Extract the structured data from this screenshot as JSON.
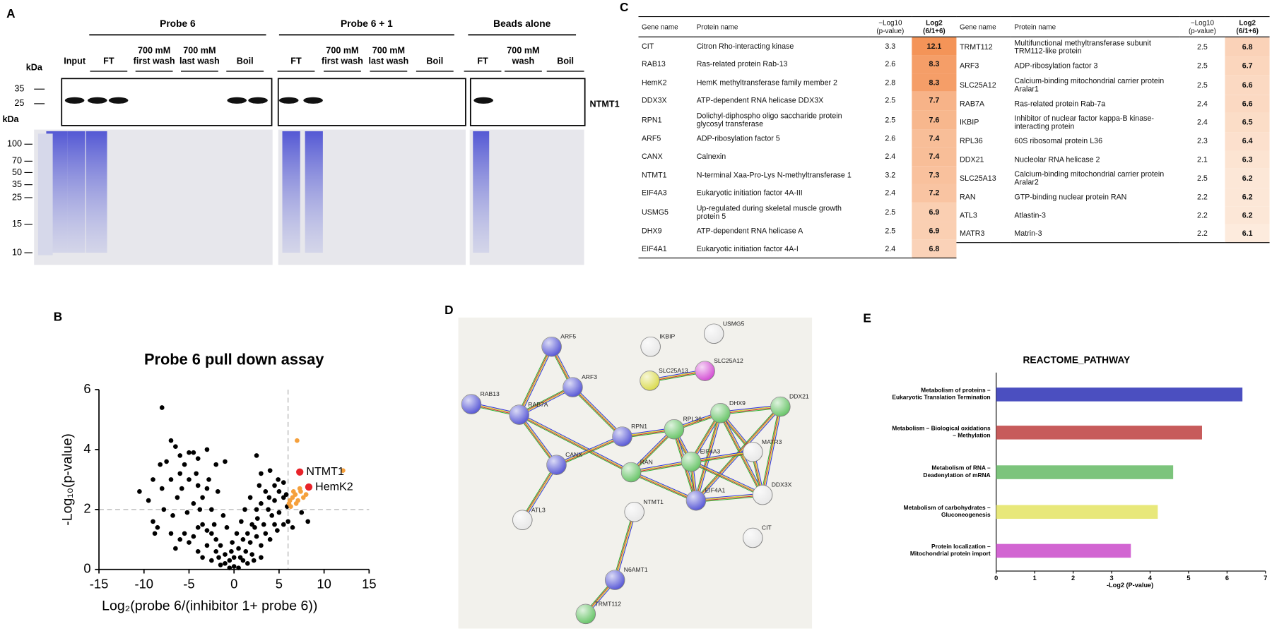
{
  "panel_labels": [
    "A",
    "B",
    "C",
    "D",
    "E"
  ],
  "gel": {
    "groups": [
      "Probe 6",
      "Probe 6 + 1",
      "Beads alone"
    ],
    "lanes": [
      [
        "Input"
      ],
      [
        "FT"
      ],
      [
        "700 mM",
        "first wash"
      ],
      [
        "700 mM",
        "last wash"
      ],
      [
        "Boil"
      ],
      [
        "FT"
      ],
      [
        "700 mM",
        "first wash"
      ],
      [
        "700 mM",
        "last wash"
      ],
      [
        "Boil"
      ],
      [
        "FT"
      ],
      [
        "700 mM",
        "wash"
      ],
      [
        "Boil"
      ]
    ],
    "kda_label": "kDa",
    "blot_markers": [
      35,
      25
    ],
    "gel_markers": [
      100,
      70,
      50,
      35,
      25,
      15,
      10
    ],
    "band_label": "NTMT1"
  },
  "table": {
    "header": [
      "Gene name",
      "Protein name",
      "−Log10\n(p-value)",
      "Log2\n(6/1+6)"
    ],
    "rows_left": [
      [
        "CIT",
        "Citron Rho-interacting kinase",
        3.3,
        12.1
      ],
      [
        "RAB13",
        "Ras-related protein Rab-13",
        2.6,
        8.3
      ],
      [
        "HemK2",
        "HemK methyltransferase family member 2",
        2.8,
        8.3
      ],
      [
        "DDX3X",
        "ATP-dependent RNA helicase DDX3X",
        2.5,
        7.7
      ],
      [
        "RPN1",
        "Dolichyl-diphospho oligo saccharide protein glycosyl transferase",
        2.5,
        7.6
      ],
      [
        "ARF5",
        "ADP-ribosylation factor 5",
        2.6,
        7.4
      ],
      [
        "CANX",
        "Calnexin",
        2.4,
        7.4
      ],
      [
        "NTMT1",
        "N-terminal Xaa-Pro-Lys N-methyltransferase 1",
        3.2,
        7.3
      ],
      [
        "EIF4A3",
        "Eukaryotic initiation factor 4A-III",
        2.4,
        7.2
      ],
      [
        "USMG5",
        "Up-regulated during skeletal muscle growth protein 5",
        2.5,
        6.9
      ],
      [
        "DHX9",
        "ATP-dependent RNA helicase A",
        2.5,
        6.9
      ],
      [
        "EIF4A1",
        "Eukaryotic initiation factor 4A-I",
        2.4,
        6.8
      ]
    ],
    "rows_right": [
      [
        "TRMT112",
        "Multifunctional methyltransferase subunit TRM112-like protein",
        2.5,
        6.8
      ],
      [
        "ARF3",
        "ADP-ribosylation factor 3",
        2.5,
        6.7
      ],
      [
        "SLC25A12",
        "Calcium-binding mitochondrial carrier protein Aralar1",
        2.5,
        6.6
      ],
      [
        "RAB7A",
        "Ras-related protein Rab-7a",
        2.4,
        6.6
      ],
      [
        "IKBIP",
        "Inhibitor of nuclear factor kappa-B kinase-interacting protein",
        2.4,
        6.5
      ],
      [
        "RPL36",
        "60S ribosomal protein L36",
        2.3,
        6.4
      ],
      [
        "DDX21",
        "Nucleolar RNA helicase 2",
        2.1,
        6.3
      ],
      [
        "SLC25A13",
        "Calcium-binding mitochondrial carrier protein Aralar2",
        2.5,
        6.2
      ],
      [
        "RAN",
        "GTP-binding nuclear protein RAN",
        2.2,
        6.2
      ],
      [
        "ATL3",
        "Atlastin-3",
        2.2,
        6.2
      ],
      [
        "MATR3",
        "Matrin-3",
        2.2,
        6.1
      ]
    ]
  },
  "network": {
    "nodes": [
      "ARF5",
      "ARF3",
      "RAB13",
      "RAB7A",
      "IKBIP",
      "USMG5",
      "SLC25A13",
      "SLC25A12",
      "DDX21",
      "DHX9",
      "RPL36",
      "RPN1",
      "CANX",
      "RAN",
      "EIF4A3",
      "MATR3",
      "DDX3X",
      "EIF4A1",
      "NTMT1",
      "ATL3",
      "CIT",
      "N6AMT1",
      "TRMT112"
    ]
  },
  "chart_data": [
    {
      "type": "scatter",
      "title": "Probe 6 pull down assay",
      "x_label": "Log₂(probe 6/(inhibitor 1+ probe 6))",
      "y_label": "-Log₁₀(p-value)",
      "xlim": [
        -15,
        15
      ],
      "ylim": [
        0,
        6
      ],
      "xticks": [
        -15,
        -10,
        -5,
        0,
        5,
        10,
        15
      ],
      "yticks": [
        0,
        2,
        4,
        6
      ],
      "thresholds": {
        "x": 6,
        "y": 2
      },
      "series": [
        {
          "color": "#000000",
          "x": [
            -8,
            -7,
            -6.5,
            -5,
            -4.5,
            -3,
            -1,
            3,
            -6,
            -4,
            -7.5,
            -8.2,
            -5.5,
            -2,
            -10.5,
            -9,
            -8,
            -7,
            -6,
            -5,
            -4,
            -3,
            -6.3,
            -4.5,
            -3.5,
            -7.8,
            -9,
            -8.5,
            -6.8,
            -5.2,
            -2.5,
            2.5,
            4,
            4.5,
            5,
            5.5,
            3.5,
            4.5,
            3,
            2.5,
            5.5,
            5.8,
            3.8,
            4.2,
            5,
            5.5,
            6,
            4.8,
            3.3,
            2.6,
            2,
            1.5,
            1,
            0.5,
            0,
            -0.5,
            -1,
            -1.5,
            -2,
            -2.5,
            -3,
            -3.5,
            -4,
            -4.5,
            -5,
            -5.5,
            -6,
            -3,
            -2,
            -1,
            0,
            1,
            2,
            3,
            4,
            2.5,
            1.8,
            3.5,
            4.5,
            -4,
            -3.5,
            -2.5,
            -1.5,
            -0.5,
            0.5,
            1.5,
            2.2,
            3,
            -6.5,
            -7,
            -1.2,
            -0.8,
            0.8,
            1.2,
            0.3,
            -0.2,
            2.8,
            1.8,
            -2.8,
            -1.8,
            -4.2,
            -5.8,
            5.9,
            7.5,
            8.2,
            6.5,
            -0.3,
            0.7,
            -1.7,
            1.3,
            -2.2,
            2.3,
            -3.8,
            3.9,
            4.9,
            -9.5,
            -8.8
          ],
          "values": [
            5.4,
            4.3,
            4.1,
            3.9,
            3.9,
            4,
            3.6,
            3.2,
            3.8,
            3.7,
            3.6,
            3.5,
            3.5,
            3.5,
            2.6,
            3,
            2.7,
            3,
            3.2,
            3,
            2.8,
            2.7,
            2.4,
            2.2,
            2.4,
            2,
            1.6,
            1.4,
            1.8,
            1.9,
            2,
            3.8,
            3.3,
            2.8,
            2.6,
            2.4,
            2.6,
            2.3,
            2.2,
            2,
            2.9,
            2.5,
            2,
            1.8,
            1.9,
            1.5,
            1.6,
            1.3,
            1.5,
            1.7,
            1.5,
            1.2,
            1,
            0.7,
            0.4,
            0.3,
            0.5,
            0.8,
            1,
            1.2,
            1.3,
            1.5,
            1.4,
            1.1,
            0.9,
            1.2,
            1,
            0.8,
            0.6,
            0.2,
            0.1,
            0.3,
            0.5,
            0.8,
            1,
            1.1,
            0.9,
            1.2,
            1.5,
            0.6,
            0.4,
            0.3,
            0.15,
            0.05,
            0.05,
            0.2,
            0.3,
            0.4,
            0.7,
            1.2,
            1.8,
            1.4,
            1.6,
            2,
            1.2,
            0.9,
            2.8,
            2.4,
            3,
            2.6,
            3.2,
            2.7,
            2.1,
            1.9,
            1.6,
            1.4,
            0.6,
            0.4,
            0.4,
            0.6,
            1.5,
            1.4,
            2,
            2.4,
            3,
            2.3,
            1.2
          ]
        },
        {
          "color": "#f5a03c",
          "x": [
            7,
            12.1,
            6.2,
            6.5,
            6.8,
            7.1,
            7.4,
            7.7,
            6.3,
            6.9,
            7.3,
            6.6,
            8,
            6.1
          ],
          "values": [
            4.3,
            3.3,
            2.3,
            2.4,
            2.5,
            2.3,
            2.6,
            2.4,
            2.1,
            2.2,
            2.7,
            2.6,
            2.5,
            2.2
          ]
        },
        {
          "color": "#e8232a",
          "x": [
            7.3,
            8.3
          ],
          "values": [
            3.25,
            2.75
          ],
          "point_labels": [
            "NTMT1",
            "HemK2"
          ]
        }
      ]
    },
    {
      "type": "hbar",
      "title": "REACTOME_PATHWAY",
      "x_label": "-Log2 (P-value)",
      "categories": [
        [
          "Metabolism of proteins –",
          "Eukaryotic Translation Termination"
        ],
        [
          "Metabolism –  Biological oxidations",
          "– Methylation"
        ],
        [
          "Metabolism of RNA –",
          "Deadenylation of mRNA"
        ],
        [
          "Metabolism of carbohydrates –",
          "Gluconeogenesis"
        ],
        [
          "Protein localization –",
          "Mitochondrial protein import"
        ]
      ],
      "values": [
        6.4,
        5.35,
        4.6,
        4.2,
        3.5
      ],
      "colors": [
        "#4b4fc0",
        "#c75b5b",
        "#7cc47c",
        "#e8e87a",
        "#d265d2"
      ],
      "xlim": [
        0,
        7
      ],
      "xticks": [
        0,
        1,
        2,
        3,
        4,
        5,
        6,
        7
      ]
    }
  ]
}
